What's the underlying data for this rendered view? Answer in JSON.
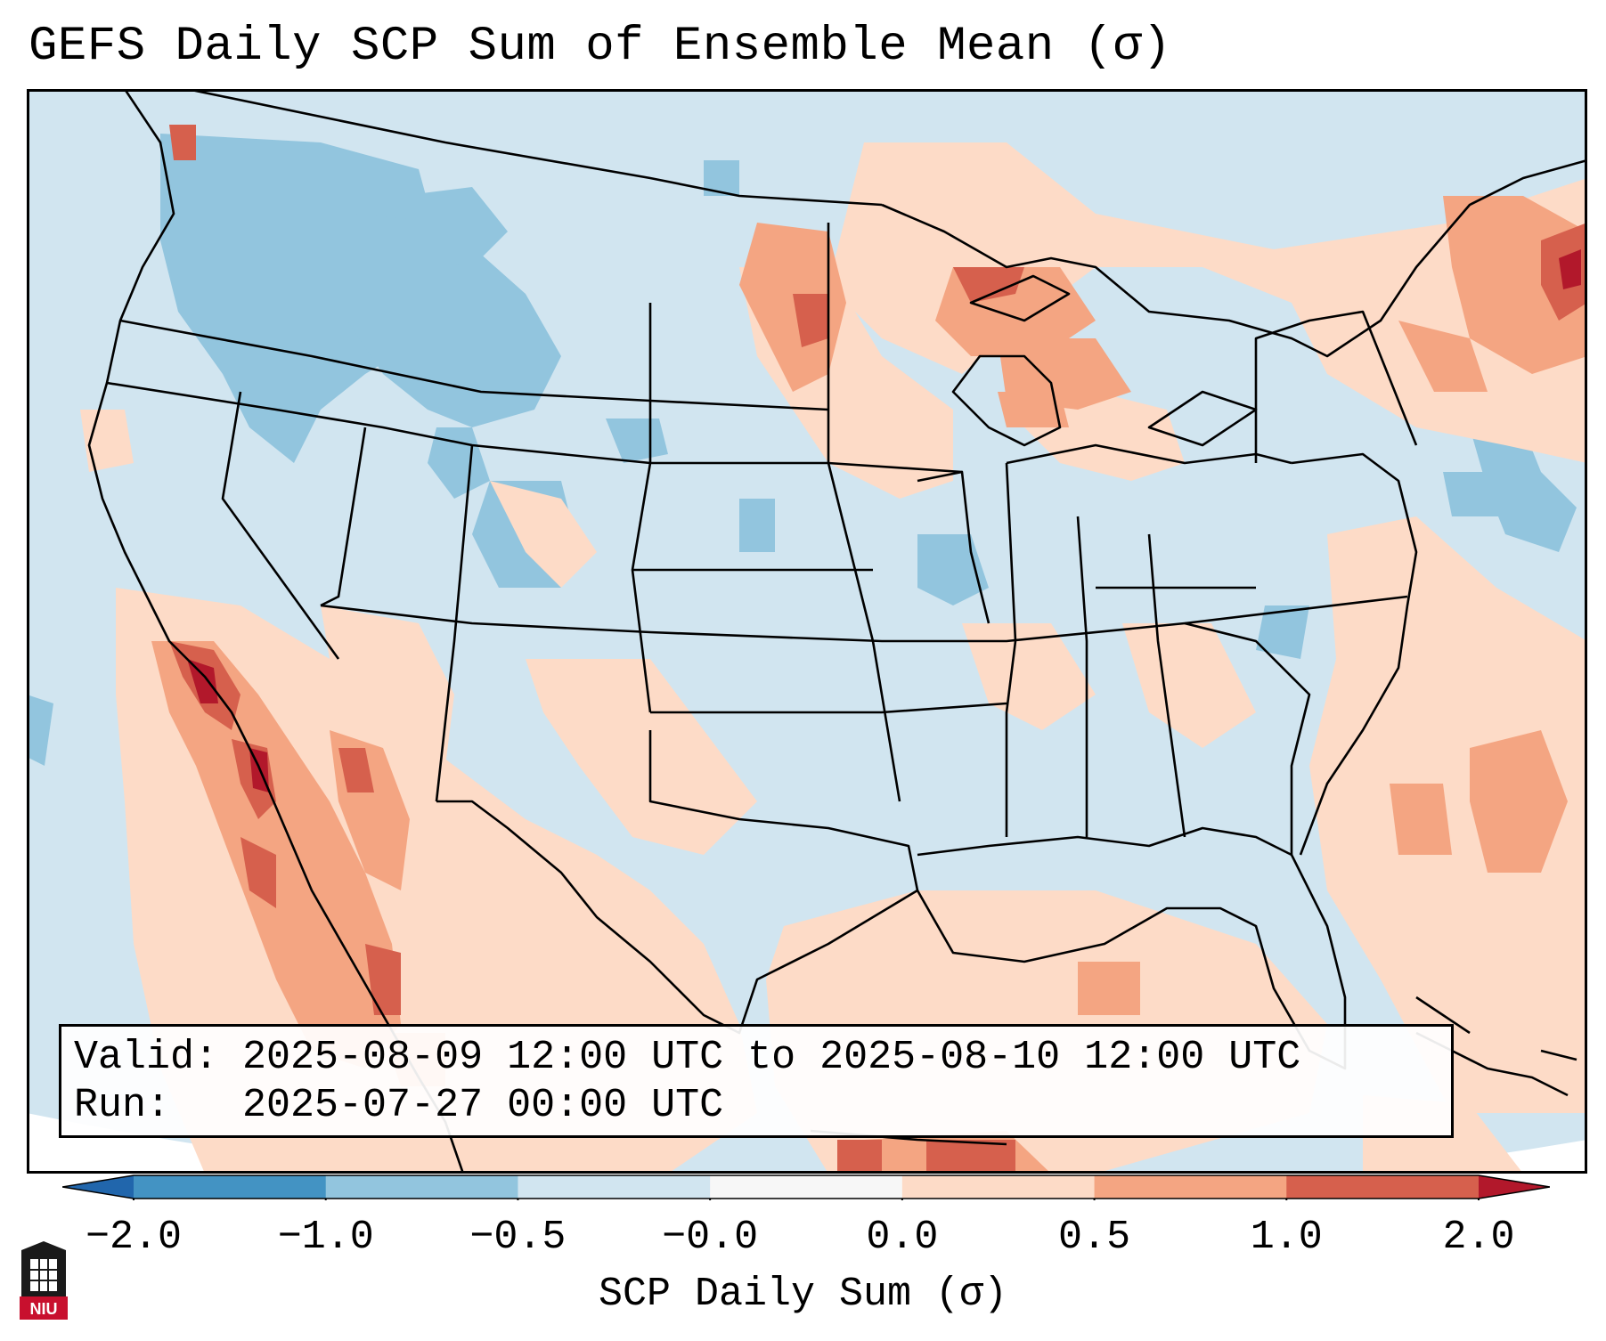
{
  "title": "GEFS Daily SCP Sum of Ensemble Mean (σ)",
  "valid_line": "Valid: 2025-08-09 12:00 UTC to 2025-08-10 12:00 UTC",
  "run_line": "Run:   2025-07-27 00:00 UTC",
  "colorbar": {
    "label": "SCP Daily Sum (σ)",
    "ticks": [
      "−2.0",
      "−1.0",
      "−0.5",
      "−0.0",
      "0.0",
      "0.5",
      "1.0",
      "2.0"
    ],
    "colors": [
      "#4393c3",
      "#92c5de",
      "#d1e5f0",
      "#f7f7f7",
      "#fddbc7",
      "#f4a582",
      "#d6604d",
      "#b2182b"
    ],
    "under_color": "#2166ac",
    "over_color": "#b2182b"
  },
  "map": {
    "background_color": "#d1e5f0",
    "outside_color": "#ffffff",
    "boundary_color": "#000000"
  },
  "logo": {
    "text": "NIU"
  }
}
